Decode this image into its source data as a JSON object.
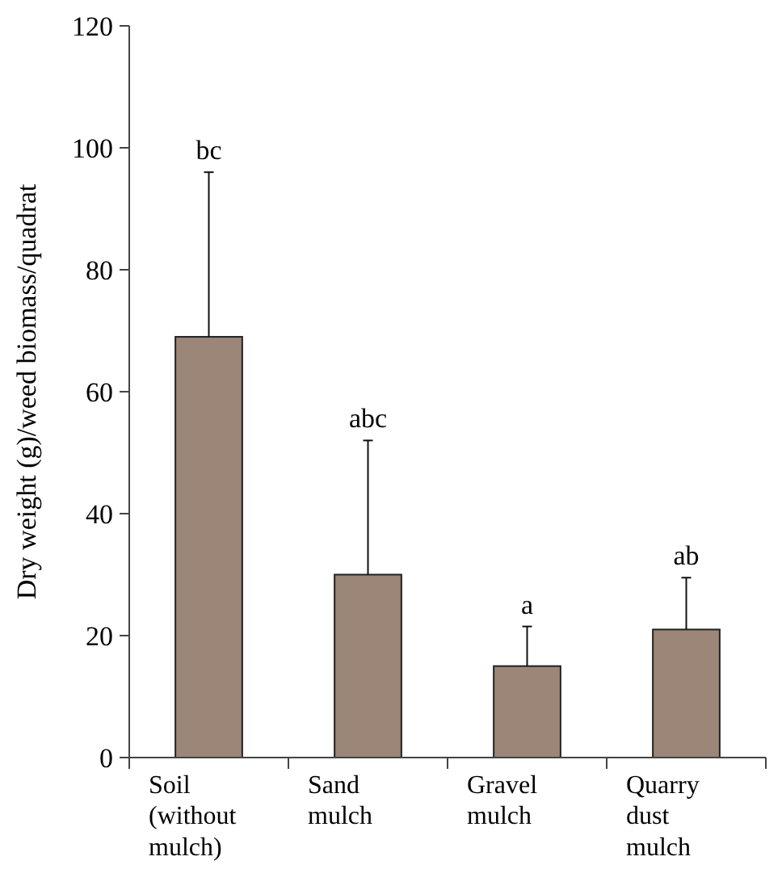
{
  "chart_data": {
    "type": "bar",
    "ylabel": "Dry weight (g)/weed biomass/quadrat",
    "categories": [
      "Soil (without mulch)",
      "Sand mulch",
      "Gravel mulch",
      "Quarry dust mulch"
    ],
    "values": [
      69,
      30,
      15,
      21
    ],
    "errors": [
      [
        69,
        96
      ],
      [
        30,
        52
      ],
      [
        15,
        21.5
      ],
      [
        21,
        29.5
      ]
    ],
    "color": "#9b8677",
    "ylim": [
      0,
      120
    ],
    "yticks": [
      0,
      20,
      40,
      60,
      80,
      100,
      120
    ],
    "grid": false,
    "annotations": [
      "bc",
      "abc",
      "a",
      "ab"
    ]
  }
}
